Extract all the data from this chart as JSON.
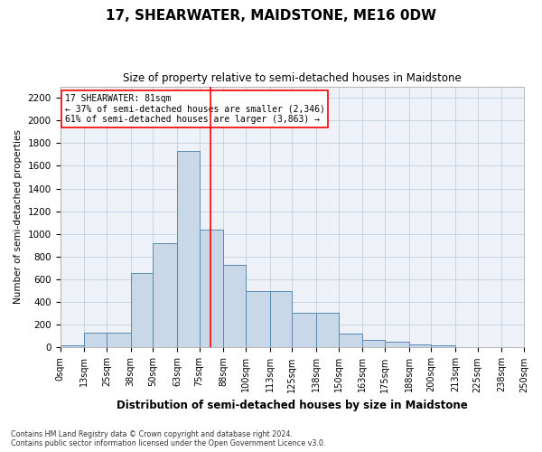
{
  "title": "17, SHEARWATER, MAIDSTONE, ME16 0DW",
  "subtitle": "Size of property relative to semi-detached houses in Maidstone",
  "xlabel": "Distribution of semi-detached houses by size in Maidstone",
  "ylabel": "Number of semi-detached properties",
  "bar_color": "#c8d8e8",
  "bar_edge_color": "#5a8ab0",
  "grid_color": "#c0cfe0",
  "background_color": "#eef2f8",
  "property_size": 81,
  "annotation_line1": "17 SHEARWATER: 81sqm",
  "annotation_line2": "← 37% of semi-detached houses are smaller (2,346)",
  "annotation_line3": "61% of semi-detached houses are larger (3,863) →",
  "bins": [
    0,
    13,
    25,
    38,
    50,
    63,
    75,
    88,
    100,
    113,
    125,
    138,
    150,
    163,
    175,
    188,
    200,
    213,
    225,
    238,
    250
  ],
  "counts": [
    20,
    130,
    130,
    660,
    920,
    1730,
    1040,
    730,
    500,
    500,
    310,
    310,
    120,
    70,
    50,
    25,
    20,
    5,
    5,
    5
  ],
  "ylim": [
    0,
    2300
  ],
  "yticks": [
    0,
    200,
    400,
    600,
    800,
    1000,
    1200,
    1400,
    1600,
    1800,
    2000,
    2200
  ],
  "footnote": "Contains HM Land Registry data © Crown copyright and database right 2024.\nContains public sector information licensed under the Open Government Licence v3.0.",
  "figsize": [
    6.0,
    5.0
  ],
  "dpi": 100
}
